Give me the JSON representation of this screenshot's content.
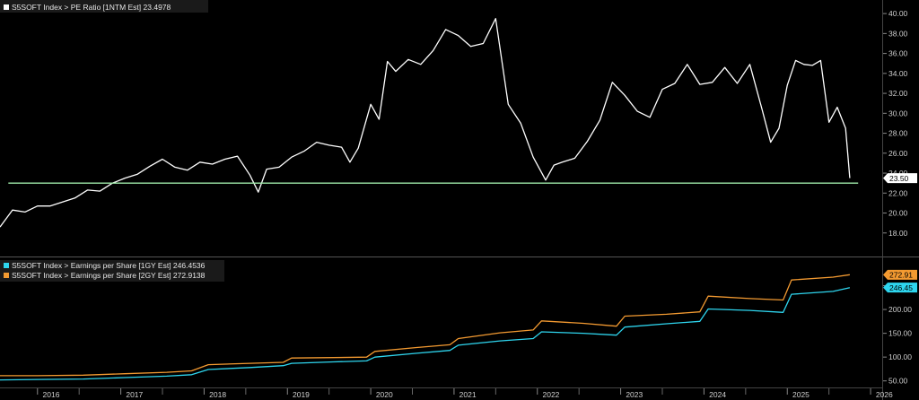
{
  "chart_data": [
    {
      "type": "line",
      "panel": "top",
      "ylim": [
        16,
        41
      ],
      "yticks": [
        "18.00",
        "20.00",
        "22.00",
        "24.00",
        "26.00",
        "28.00",
        "30.00",
        "32.00",
        "34.00",
        "36.00",
        "38.00",
        "40.00"
      ],
      "ytick_values": [
        18,
        20,
        22,
        24,
        26,
        28,
        30,
        32,
        34,
        36,
        38,
        40
      ],
      "grid": false,
      "legend_placement": "top-left",
      "series": [
        {
          "name": "S5SOFT Index > PE Ratio [1NTM Est] 23.4978",
          "color": "#ffffff",
          "last_value_label": "23.50",
          "x": [
            2015.55,
            2015.7,
            2015.85,
            2016.0,
            2016.15,
            2016.3,
            2016.45,
            2016.6,
            2016.75,
            2016.9,
            2017.05,
            2017.2,
            2017.35,
            2017.5,
            2017.65,
            2017.8,
            2017.95,
            2018.1,
            2018.25,
            2018.4,
            2018.55,
            2018.65,
            2018.75,
            2018.9,
            2019.05,
            2019.2,
            2019.35,
            2019.5,
            2019.65,
            2019.75,
            2019.85,
            2020.0,
            2020.1,
            2020.2,
            2020.3,
            2020.45,
            2020.6,
            2020.75,
            2020.9,
            2021.05,
            2021.2,
            2021.35,
            2021.5,
            2021.65,
            2021.8,
            2021.95,
            2022.1,
            2022.2,
            2022.3,
            2022.45,
            2022.6,
            2022.75,
            2022.9,
            2023.05,
            2023.2,
            2023.35,
            2023.5,
            2023.65,
            2023.8,
            2023.95,
            2024.1,
            2024.25,
            2024.4,
            2024.55,
            2024.7,
            2024.8,
            2024.9,
            2025.0,
            2025.1,
            2025.2,
            2025.3,
            2025.4,
            2025.5,
            2025.6,
            2025.7,
            2025.75
          ],
          "y": [
            18.6,
            20.3,
            20.1,
            20.7,
            20.7,
            21.1,
            21.5,
            22.3,
            22.2,
            23.0,
            23.5,
            23.9,
            24.7,
            25.4,
            24.6,
            24.3,
            25.1,
            24.9,
            25.4,
            25.7,
            23.8,
            22.1,
            24.4,
            24.6,
            25.6,
            26.2,
            27.1,
            26.8,
            26.6,
            25.1,
            26.5,
            30.9,
            29.4,
            35.2,
            34.2,
            35.4,
            34.9,
            36.3,
            38.4,
            37.8,
            36.7,
            37.0,
            39.5,
            30.9,
            29.0,
            25.6,
            23.3,
            24.8,
            25.1,
            25.5,
            27.2,
            29.3,
            33.1,
            31.8,
            30.2,
            29.6,
            32.4,
            33.0,
            34.9,
            32.9,
            33.1,
            34.6,
            33.0,
            34.9,
            30.3,
            27.1,
            28.5,
            32.8,
            35.3,
            34.9,
            34.8,
            35.3,
            29.1,
            30.6,
            28.5,
            23.5
          ]
        },
        {
          "name": "",
          "color": "#9ee8a8",
          "x": [
            2015.65,
            2025.85
          ],
          "y": [
            23.0,
            23.0
          ]
        }
      ]
    },
    {
      "type": "line",
      "panel": "bottom",
      "ylim": [
        40,
        300
      ],
      "yticks": [
        "50.00",
        "100.00",
        "150.00",
        "200.00",
        "250.00"
      ],
      "ytick_values": [
        50,
        100,
        150,
        200,
        250
      ],
      "grid": false,
      "legend_placement": "top-left",
      "series": [
        {
          "name": "S5SOFT Index > Earnings per Share [1GY Est] 246.4536",
          "color": "#2ed5ee",
          "last_value_label": "246.45",
          "x": [
            2015.55,
            2016.0,
            2016.55,
            2017.05,
            2017.55,
            2017.85,
            2018.05,
            2018.55,
            2018.95,
            2019.05,
            2019.55,
            2019.95,
            2020.05,
            2020.55,
            2020.95,
            2021.05,
            2021.55,
            2021.95,
            2022.05,
            2022.55,
            2022.95,
            2023.05,
            2023.55,
            2023.95,
            2024.05,
            2024.55,
            2024.95,
            2025.05,
            2025.55,
            2025.75
          ],
          "y": [
            52,
            53,
            54,
            57,
            60,
            63,
            74,
            78,
            82,
            87,
            90,
            92,
            100,
            108,
            114,
            125,
            134,
            139,
            153,
            150,
            146,
            163,
            170,
            175,
            201,
            198,
            194,
            232,
            238,
            246
          ]
        },
        {
          "name": "S5SOFT Index > Earnings per Share [2GY Est] 272.9138",
          "color": "#f39a31",
          "last_value_label": "272.91",
          "x": [
            2015.55,
            2016.0,
            2016.55,
            2017.05,
            2017.55,
            2017.85,
            2018.05,
            2018.55,
            2018.95,
            2019.05,
            2019.55,
            2019.95,
            2020.05,
            2020.55,
            2020.95,
            2021.05,
            2021.55,
            2021.95,
            2022.05,
            2022.55,
            2022.95,
            2023.05,
            2023.55,
            2023.95,
            2024.05,
            2024.55,
            2024.95,
            2025.05,
            2025.55,
            2025.75
          ],
          "y": [
            61,
            61,
            62,
            65,
            68,
            71,
            84,
            87,
            89,
            98,
            99,
            100,
            112,
            120,
            126,
            139,
            151,
            157,
            176,
            171,
            165,
            186,
            190,
            195,
            228,
            223,
            220,
            262,
            268,
            273
          ]
        }
      ]
    }
  ],
  "x_axis": {
    "labels": [
      "2016",
      "2017",
      "2018",
      "2019",
      "2020",
      "2021",
      "2022",
      "2023",
      "2024",
      "2025",
      "2026"
    ],
    "label_values": [
      2016.0,
      2017.0,
      2018.0,
      2019.0,
      2020.0,
      2021.0,
      2022.0,
      2023.0,
      2024.0,
      2025.0,
      2026.0
    ],
    "xlim": [
      2015.55,
      2026.15
    ]
  },
  "colors": {
    "background": "#000000",
    "pe_line": "#ffffff",
    "support_line": "#9ee8a8",
    "eps_1gy": "#2ed5ee",
    "eps_2gy": "#f39a31"
  }
}
